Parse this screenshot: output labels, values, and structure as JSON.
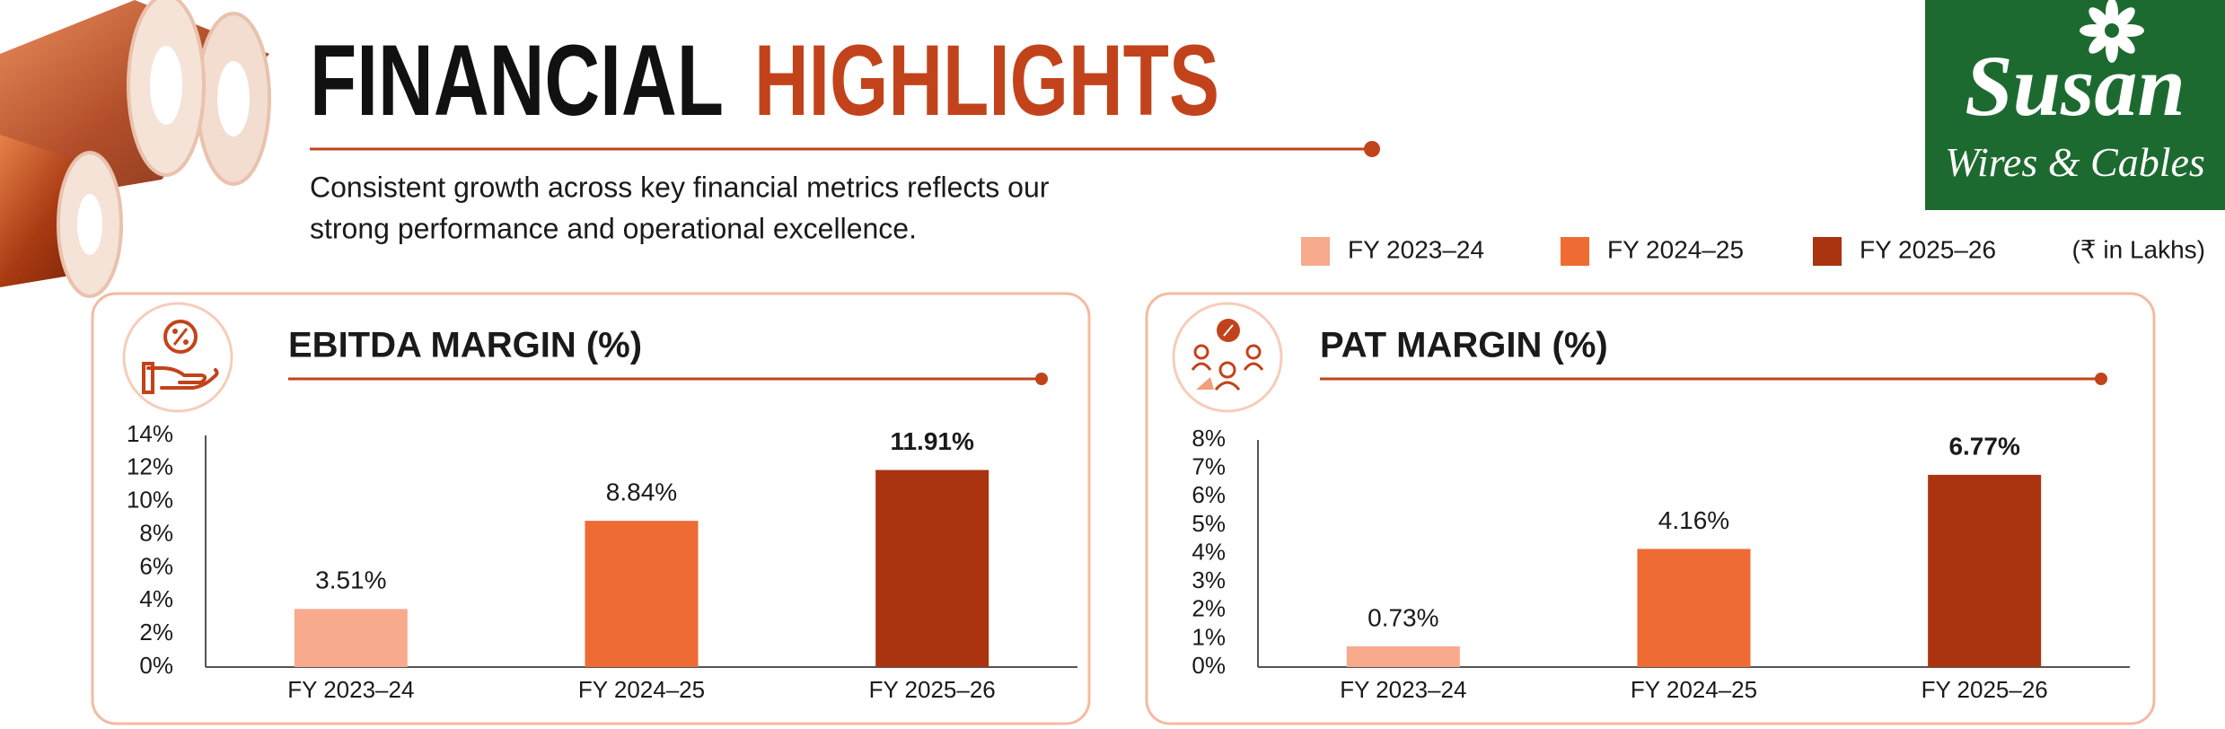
{
  "header": {
    "title": [
      "FINANCIAL",
      "HIGHLIGHTS"
    ],
    "subtitle": [
      "Consistent growth across key financial metrics reflects our",
      "strong performance and operational excellence."
    ]
  },
  "logo": {
    "name": "Susan",
    "tagline": "Wires & Cables"
  },
  "legend": {
    "items": [
      {
        "name": "FY 2023–24",
        "color": "#f7aa8c"
      },
      {
        "name": "FY 2024–25",
        "color": "#ee6b33"
      },
      {
        "name": "FY 2025–26",
        "color": "#a9340f"
      }
    ],
    "note": "(₹ in Lakhs)"
  },
  "chart_data": [
    {
      "type": "bar",
      "title": "EBITDA MARGIN (%)",
      "categories": [
        "FY 2023–24",
        "FY 2024–25",
        "FY 2025–26"
      ],
      "values": [
        3.51,
        8.84,
        11.91
      ],
      "value_labels": [
        "3.51%",
        "8.84%",
        "11.91%"
      ],
      "colors": [
        "#f7aa8c",
        "#ee6b33",
        "#a9340f"
      ],
      "ylim": [
        0,
        14
      ],
      "yticks": [
        {
          "value": 0,
          "label": "0%"
        },
        {
          "value": 2,
          "label": "2%"
        },
        {
          "value": 4,
          "label": "4%"
        },
        {
          "value": 6,
          "label": "6%"
        },
        {
          "value": 8,
          "label": "8%"
        },
        {
          "value": 10,
          "label": "10%"
        },
        {
          "value": 12,
          "label": "12%"
        },
        {
          "value": 14,
          "label": "14%"
        }
      ],
      "grid": false
    },
    {
      "type": "bar",
      "title": "PAT MARGIN (%)",
      "categories": [
        "FY 2023–24",
        "FY 2024–25",
        "FY 2025–26"
      ],
      "values": [
        0.73,
        4.16,
        6.77
      ],
      "value_labels": [
        "0.73%",
        "4.16%",
        "6.77%"
      ],
      "colors": [
        "#f7aa8c",
        "#ee6b33",
        "#a9340f"
      ],
      "ylim": [
        0,
        8
      ],
      "yticks": [
        {
          "value": 0,
          "label": "0%"
        },
        {
          "value": 1,
          "label": "1%"
        },
        {
          "value": 2,
          "label": "2%"
        },
        {
          "value": 3,
          "label": "3%"
        },
        {
          "value": 4,
          "label": "4%"
        },
        {
          "value": 5,
          "label": "5%"
        },
        {
          "value": 6,
          "label": "6%"
        },
        {
          "value": 7,
          "label": "7%"
        },
        {
          "value": 8,
          "label": "8%"
        }
      ],
      "grid": false
    }
  ]
}
